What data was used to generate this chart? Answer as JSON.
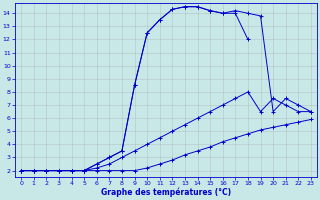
{
  "title": "Graphe des températures (°C)",
  "bg_color": "#c8e8e8",
  "grid_color": "#aaaaaa",
  "line_color": "#0000cc",
  "xlim": [
    -0.5,
    23.5
  ],
  "ylim": [
    1.5,
    14.8
  ],
  "xticks": [
    0,
    1,
    2,
    3,
    4,
    5,
    6,
    7,
    8,
    9,
    10,
    11,
    12,
    13,
    14,
    15,
    16,
    17,
    18,
    19,
    20,
    21,
    22,
    23
  ],
  "yticks": [
    2,
    3,
    4,
    5,
    6,
    7,
    8,
    9,
    10,
    11,
    12,
    13,
    14
  ],
  "curve1_x": [
    0,
    1,
    2,
    3,
    4,
    5,
    6,
    7,
    8,
    9,
    10,
    11,
    12,
    13,
    14,
    15,
    16,
    17,
    18,
    19,
    20,
    21,
    22,
    23
  ],
  "curve1_y": [
    2,
    2,
    2,
    2,
    2,
    2,
    2,
    2,
    2,
    2,
    2.2,
    2.5,
    2.8,
    3.2,
    3.5,
    3.8,
    4.2,
    4.5,
    4.8,
    5.1,
    5.3,
    5.5,
    5.7,
    5.9
  ],
  "curve2_x": [
    0,
    1,
    2,
    3,
    4,
    5,
    6,
    7,
    8,
    9,
    10,
    11,
    12,
    13,
    14,
    15,
    16,
    17,
    18,
    19,
    20,
    21,
    22,
    23
  ],
  "curve2_y": [
    2,
    2,
    2,
    2,
    2,
    2,
    2.2,
    2.5,
    3.0,
    3.5,
    4.0,
    4.5,
    5.0,
    5.5,
    6.0,
    6.5,
    7.0,
    7.5,
    8.0,
    6.5,
    7.5,
    7.0,
    6.5,
    6.5
  ],
  "curve3_x": [
    0,
    1,
    2,
    3,
    4,
    5,
    6,
    7,
    8,
    9,
    10,
    11,
    12,
    13,
    14,
    15,
    16,
    17,
    18
  ],
  "curve3_y": [
    2,
    2,
    2,
    2,
    2,
    2,
    2.5,
    3.0,
    3.5,
    8.5,
    12.5,
    13.5,
    14.3,
    14.5,
    14.5,
    14.2,
    14.0,
    14.0,
    12.0
  ],
  "curve4_x": [
    0,
    1,
    2,
    3,
    4,
    5,
    6,
    7,
    8,
    9,
    10,
    11,
    12,
    13,
    14,
    15,
    16,
    17,
    18,
    19,
    20,
    21,
    22,
    23
  ],
  "curve4_y": [
    2,
    2,
    2,
    2,
    2,
    2,
    2.5,
    3.0,
    3.5,
    8.5,
    12.5,
    13.5,
    14.3,
    14.5,
    14.5,
    14.2,
    14.0,
    14.2,
    14.0,
    13.8,
    6.5,
    7.5,
    7.0,
    6.5
  ]
}
